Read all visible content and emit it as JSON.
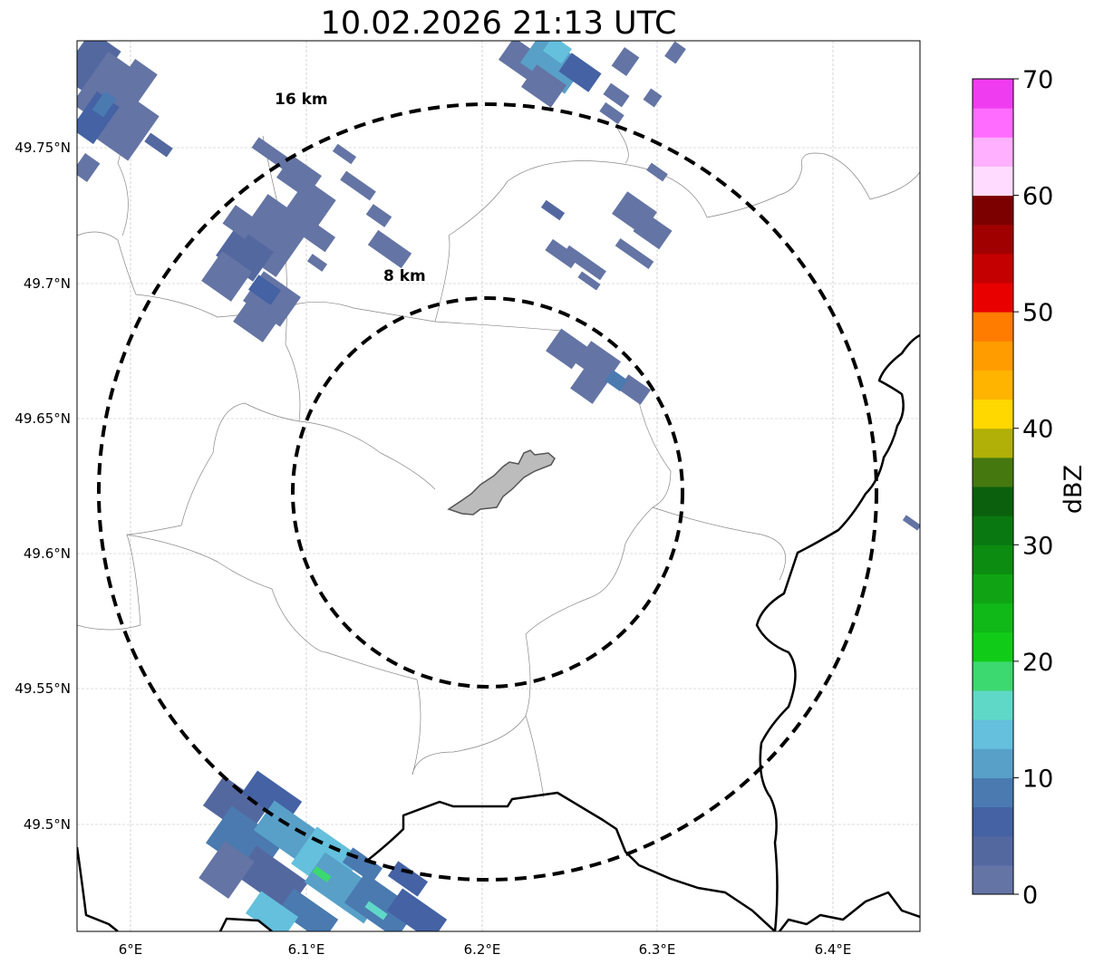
{
  "title": "10.02.2026 21:13 UTC",
  "map": {
    "lon_ticks": [
      "6°E",
      "6.1°E",
      "6.2°E",
      "6.3°E",
      "6.4°E"
    ],
    "lat_ticks": [
      "49.75°N",
      "49.7°N",
      "49.65°N",
      "49.6°N",
      "49.55°N",
      "49.5°N"
    ],
    "range_rings": [
      {
        "label": "16 km",
        "radius_km": 16
      },
      {
        "label": "8 km",
        "radius_km": 8
      }
    ]
  },
  "colorbar": {
    "label": "dBZ",
    "ticks": [
      "0",
      "10",
      "20",
      "30",
      "40",
      "50",
      "60",
      "70"
    ],
    "min": 0,
    "max": 70,
    "step": 2.5,
    "colors": [
      "#6474a4",
      "#5468a0",
      "#4462a4",
      "#4a7ab0",
      "#58a0c8",
      "#64c0dc",
      "#60d8c8",
      "#3cd870",
      "#10cc18",
      "#10b818",
      "#10a414",
      "#0c8c10",
      "#0a7810",
      "#0a600c",
      "#467810",
      "#b0b008",
      "#ffd800",
      "#ffb400",
      "#ff9c00",
      "#ff7c00",
      "#e80000",
      "#c40000",
      "#a00000",
      "#7c0000",
      "#ffdcff",
      "#ffb0ff",
      "#ff6cff",
      "#f03cf0"
    ]
  }
}
